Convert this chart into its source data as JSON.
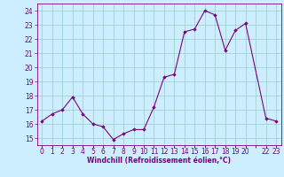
{
  "x": [
    0,
    1,
    2,
    3,
    4,
    5,
    6,
    7,
    8,
    9,
    10,
    11,
    12,
    13,
    14,
    15,
    16,
    17,
    18,
    19,
    20,
    22,
    23
  ],
  "y": [
    16.2,
    16.7,
    17.0,
    17.9,
    16.7,
    16.0,
    15.8,
    14.9,
    15.3,
    15.6,
    15.6,
    17.2,
    19.3,
    19.5,
    22.5,
    22.7,
    24.0,
    23.7,
    21.2,
    22.6,
    23.1,
    16.4,
    16.2
  ],
  "line_color": "#800080",
  "marker_color": "#800080",
  "bg_color": "#cceeff",
  "grid_color": "#99cccc",
  "xlabel": "Windchill (Refroidissement éolien,°C)",
  "ylim": [
    14.5,
    24.5
  ],
  "xlim": [
    -0.5,
    23.5
  ],
  "yticks": [
    15,
    16,
    17,
    18,
    19,
    20,
    21,
    22,
    23,
    24
  ],
  "xtick_labels": [
    "0",
    "1",
    "2",
    "3",
    "4",
    "5",
    "6",
    "7",
    "8",
    "9",
    "10",
    "11",
    "12",
    "13",
    "14",
    "15",
    "16",
    "17",
    "18",
    "19",
    "20",
    "",
    "22",
    "23"
  ],
  "axis_fontsize": 5.5,
  "tick_fontsize": 5.5
}
